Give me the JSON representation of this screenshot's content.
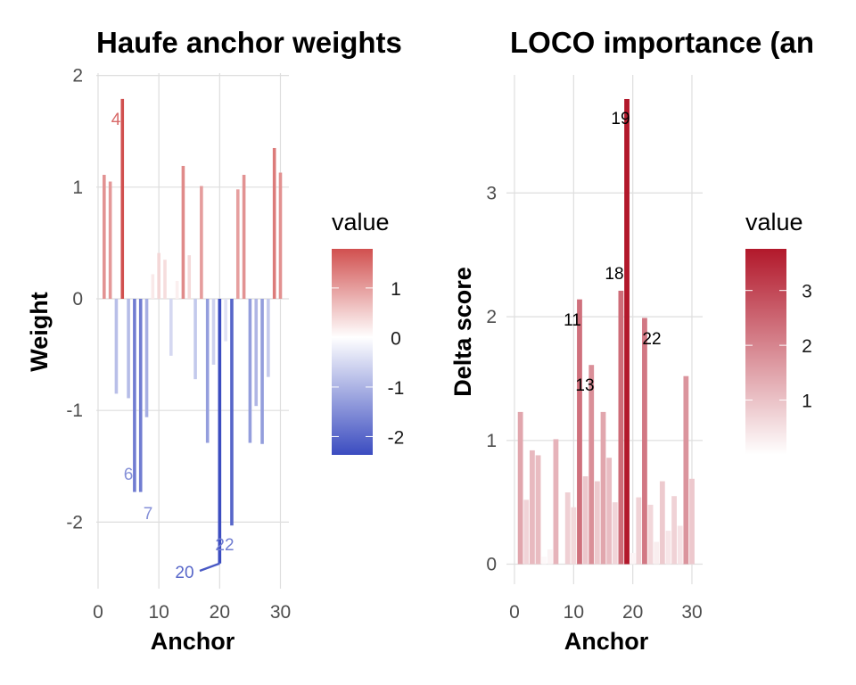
{
  "chart_data": [
    {
      "type": "bar",
      "title": "Haufe anchor weights",
      "xlabel": "Anchor",
      "ylabel": "Weight",
      "xlim": [
        0,
        30
      ],
      "ylim": [
        -2.5,
        2
      ],
      "x_ticks": [
        "0",
        "10",
        "20",
        "30"
      ],
      "y_ticks": [
        "-2",
        "-1",
        "0",
        "1",
        "2"
      ],
      "grid": true,
      "x": [
        1,
        2,
        3,
        4,
        5,
        6,
        7,
        8,
        9,
        10,
        11,
        12,
        13,
        14,
        15,
        16,
        17,
        18,
        19,
        20,
        21,
        22,
        23,
        24,
        25,
        26,
        27,
        28,
        29,
        30
      ],
      "values": [
        1.11,
        1.05,
        -0.85,
        1.79,
        -0.89,
        -1.73,
        -1.73,
        -1.06,
        0.22,
        0.41,
        0.35,
        -0.51,
        0.16,
        1.19,
        0.39,
        -0.72,
        1.01,
        -1.29,
        -0.59,
        -2.37,
        -0.38,
        -2.03,
        0.98,
        1.11,
        -1.29,
        -0.96,
        -1.3,
        -0.7,
        1.35,
        1.13
      ],
      "annotations": [
        {
          "text": "4",
          "x": 4
        },
        {
          "text": "6",
          "x": 6
        },
        {
          "text": "7",
          "x": 7
        },
        {
          "text": "20",
          "x": 20
        },
        {
          "text": "22",
          "x": 22
        }
      ],
      "legend": {
        "title": "value",
        "position": "right",
        "type": "diverging-gradient",
        "ticks": [
          "1",
          "0",
          "-1",
          "-2"
        ],
        "range": [
          -2.37,
          1.79
        ],
        "colors": {
          "low": "#3b4cc0",
          "mid": "#ffffff",
          "high": "#d1504f"
        }
      }
    },
    {
      "type": "bar",
      "title": "LOCO importance (an",
      "xlabel": "Anchor",
      "ylabel": "Delta score",
      "xlim": [
        0,
        30
      ],
      "ylim": [
        0,
        3.76
      ],
      "x_ticks": [
        "0",
        "10",
        "20",
        "30"
      ],
      "y_ticks": [
        "0",
        "1",
        "2",
        "3"
      ],
      "grid": true,
      "x": [
        1,
        2,
        3,
        4,
        5,
        6,
        7,
        8,
        9,
        10,
        11,
        12,
        13,
        14,
        15,
        16,
        17,
        18,
        19,
        20,
        21,
        22,
        23,
        24,
        25,
        26,
        27,
        28,
        29,
        30
      ],
      "values": [
        1.23,
        0.52,
        0.92,
        0.88,
        0.06,
        0.12,
        1.01,
        0.0,
        0.58,
        0.46,
        2.14,
        0.71,
        1.61,
        0.67,
        1.23,
        0.86,
        0.5,
        2.21,
        3.76,
        0.09,
        0.54,
        1.99,
        0.48,
        0.18,
        0.67,
        0.27,
        0.55,
        0.31,
        1.52,
        0.69
      ],
      "annotations": [
        {
          "text": "19",
          "x": 19
        },
        {
          "text": "18",
          "x": 18
        },
        {
          "text": "11",
          "x": 11
        },
        {
          "text": "22",
          "x": 22
        },
        {
          "text": "13",
          "x": 13
        }
      ],
      "legend": {
        "title": "value",
        "position": "right",
        "type": "sequential-gradient",
        "ticks": [
          "3",
          "2",
          "1"
        ],
        "range": [
          0,
          3.76
        ],
        "colors": {
          "low": "#ffffff",
          "high": "#b2182b"
        }
      }
    }
  ]
}
